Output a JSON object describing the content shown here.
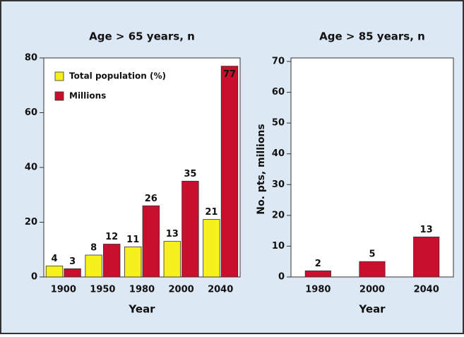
{
  "chart_data": [
    {
      "type": "bar",
      "title": "Age > 65 years, n",
      "xlabel": "Year",
      "categories": [
        "1900",
        "1950",
        "1980",
        "2000",
        "2040"
      ],
      "series": [
        {
          "name": "Total population (%)",
          "color": "#f5f01e",
          "values": [
            4,
            8,
            11,
            13,
            21
          ]
        },
        {
          "name": "Millions",
          "color": "#c8102e",
          "values": [
            3,
            12,
            26,
            35,
            77
          ]
        }
      ],
      "ylim": [
        0,
        80
      ],
      "yticks": [
        0,
        20,
        40,
        60,
        80
      ],
      "legend": "upper-left"
    },
    {
      "type": "bar",
      "title": "Age > 85 years, n",
      "xlabel": "Year",
      "ylabel": "No. pts, millions",
      "categories": [
        "1980",
        "2000",
        "2040"
      ],
      "values": [
        2,
        5,
        13
      ],
      "color": "#c8102e",
      "ylim": [
        0,
        70
      ],
      "yticks": [
        0,
        10,
        20,
        30,
        40,
        50,
        60,
        70
      ]
    }
  ]
}
